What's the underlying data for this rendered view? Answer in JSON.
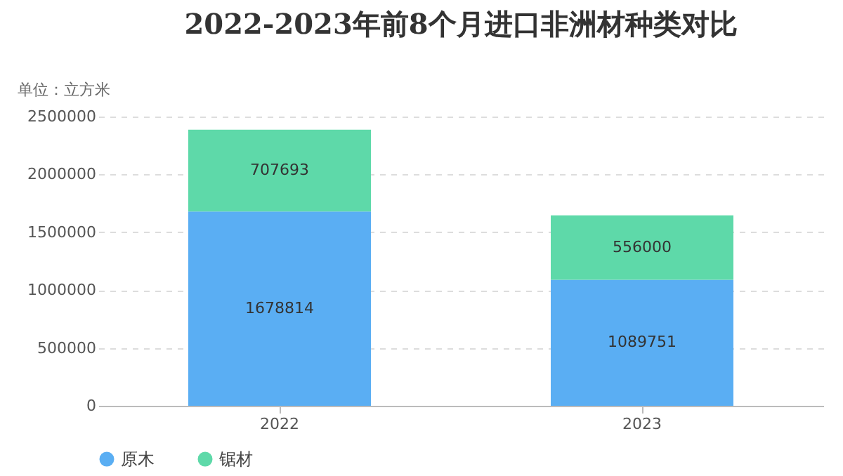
{
  "chart_data": {
    "type": "bar",
    "title": "2022-2023年前8个月进口非洲材种类对比",
    "ylabel": "单位：立方米",
    "categories": [
      "2022",
      "2023"
    ],
    "series": [
      {
        "name": "原木",
        "color": "#5aaef3",
        "values": [
          1678814,
          1089751
        ]
      },
      {
        "name": "锯材",
        "color": "#5ed9a9",
        "values": [
          707693,
          556000
        ]
      }
    ],
    "stacked": true,
    "data_labels": true,
    "ylim": [
      0,
      2500000
    ],
    "yticks": [
      0,
      500000,
      1000000,
      1500000,
      2000000,
      2500000
    ],
    "grid": "y",
    "legend": "bottom"
  }
}
